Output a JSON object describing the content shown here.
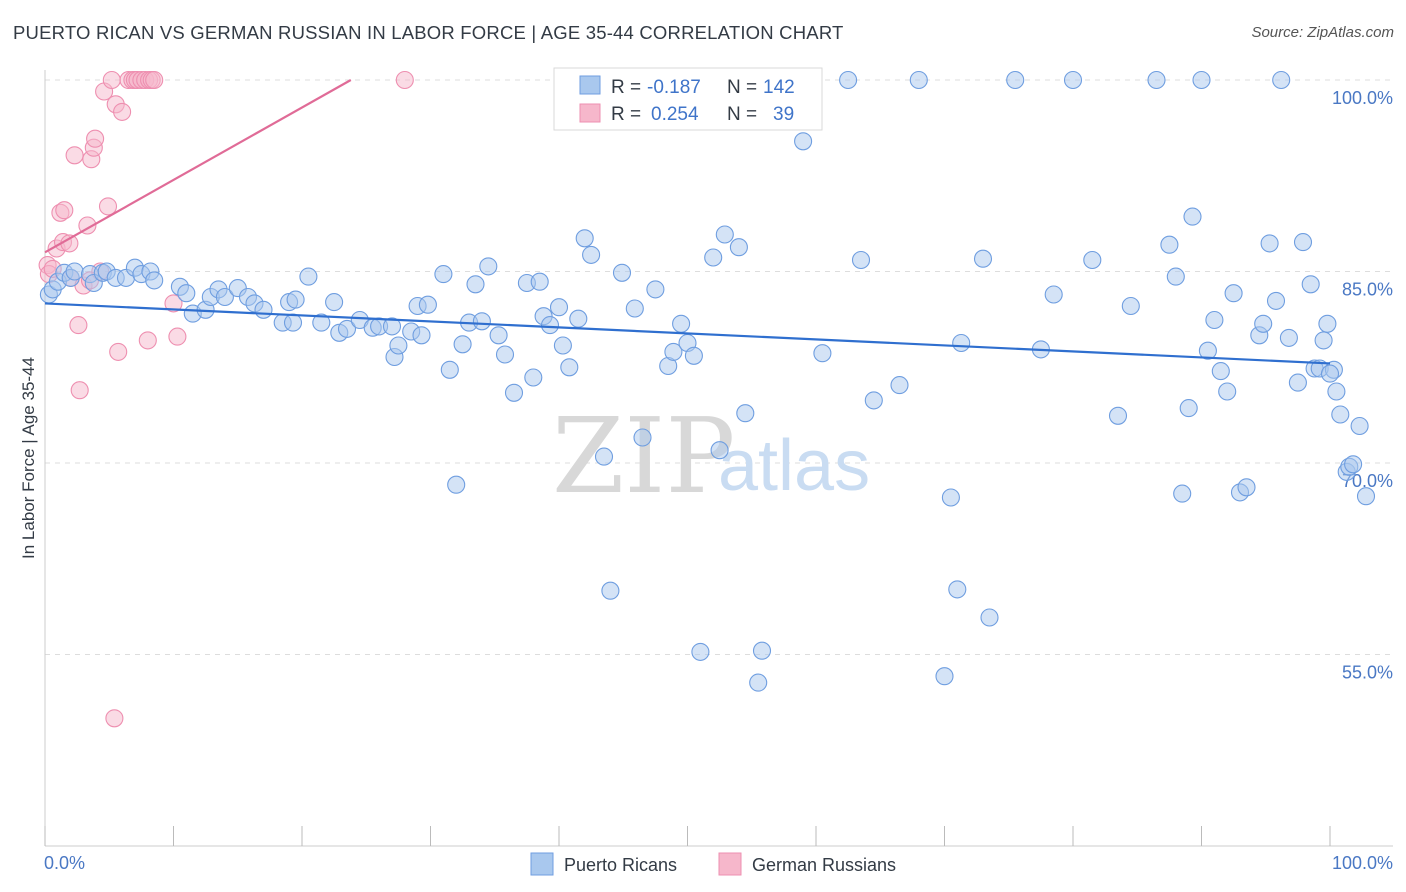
{
  "title": "PUERTO RICAN VS GERMAN RUSSIAN IN LABOR FORCE | AGE 35-44 CORRELATION CHART",
  "source": "Source: ZipAtlas.com",
  "watermark": {
    "zip": "ZIP",
    "atlas": "atlas"
  },
  "colors": {
    "blue_fill": "#a9c8ee",
    "blue_stroke": "#6f9ee0",
    "blue_line": "#2f6fcf",
    "pink_fill": "#f6b7cb",
    "pink_stroke": "#ee8fb0",
    "pink_line": "#e06b97",
    "grid": "#dddddd",
    "axis_text": "#4a78c4"
  },
  "stats": {
    "rows": [
      {
        "r_label": "R =",
        "r_value": "-0.187",
        "n_label": "N =",
        "n_value": "142"
      },
      {
        "r_label": "R =",
        "r_value": "0.254",
        "n_label": "N =",
        "n_value": "39"
      }
    ]
  },
  "legend": {
    "items": [
      "Puerto Ricans",
      "German Russians"
    ]
  },
  "chart_data": {
    "type": "scatter",
    "title": "PUERTO RICAN VS GERMAN RUSSIAN IN LABOR FORCE | AGE 35-44 CORRELATION CHART",
    "xlabel": "",
    "ylabel": "In Labor Force | Age 35-44",
    "xlim": [
      0,
      100
    ],
    "ylim": [
      40,
      101
    ],
    "y_ticks": [
      55,
      70,
      85,
      100
    ],
    "y_tick_labels": [
      "55.0%",
      "70.0%",
      "85.0%",
      "100.0%"
    ],
    "x_tick_labels": [
      "0.0%",
      "100.0%"
    ],
    "grid": "horizontal dashed",
    "legend_position": "bottom-center",
    "series": [
      {
        "name": "Puerto Ricans",
        "r": -0.187,
        "n": 142,
        "trend": [
          [
            0,
            82.5
          ],
          [
            100,
            77.8
          ]
        ],
        "points": [
          [
            0.3,
            83.2
          ],
          [
            0.6,
            83.6
          ],
          [
            1.0,
            84.2
          ],
          [
            1.5,
            84.9
          ],
          [
            2.0,
            84.5
          ],
          [
            2.3,
            85.0
          ],
          [
            3.5,
            84.8
          ],
          [
            3.8,
            84.1
          ],
          [
            4.5,
            84.9
          ],
          [
            4.8,
            85.0
          ],
          [
            5.5,
            84.5
          ],
          [
            6.3,
            84.5
          ],
          [
            7.0,
            85.3
          ],
          [
            7.5,
            84.8
          ],
          [
            8.2,
            85.0
          ],
          [
            8.5,
            84.3
          ],
          [
            10.5,
            83.8
          ],
          [
            11.0,
            83.3
          ],
          [
            11.5,
            81.7
          ],
          [
            12.5,
            82.0
          ],
          [
            12.9,
            83.0
          ],
          [
            13.5,
            83.6
          ],
          [
            14.0,
            83.0
          ],
          [
            15.0,
            83.7
          ],
          [
            15.8,
            83.0
          ],
          [
            16.3,
            82.5
          ],
          [
            17.0,
            82.0
          ],
          [
            18.5,
            81.0
          ],
          [
            19.0,
            82.6
          ],
          [
            19.5,
            82.8
          ],
          [
            19.3,
            81.0
          ],
          [
            20.5,
            84.6
          ],
          [
            21.5,
            81.0
          ],
          [
            22.5,
            82.6
          ],
          [
            22.9,
            80.2
          ],
          [
            23.5,
            80.5
          ],
          [
            24.5,
            81.2
          ],
          [
            25.5,
            80.6
          ],
          [
            26.0,
            80.7
          ],
          [
            27.0,
            80.7
          ],
          [
            27.2,
            78.3
          ],
          [
            27.5,
            79.2
          ],
          [
            28.5,
            80.3
          ],
          [
            29.0,
            82.3
          ],
          [
            29.3,
            80.0
          ],
          [
            29.8,
            82.4
          ],
          [
            31.0,
            84.8
          ],
          [
            31.5,
            77.3
          ],
          [
            32.0,
            68.3
          ],
          [
            32.5,
            79.3
          ],
          [
            33.0,
            81.0
          ],
          [
            33.5,
            84.0
          ],
          [
            34.0,
            81.1
          ],
          [
            34.5,
            85.4
          ],
          [
            35.3,
            80.0
          ],
          [
            35.8,
            78.5
          ],
          [
            36.5,
            75.5
          ],
          [
            37.5,
            84.1
          ],
          [
            38.0,
            76.7
          ],
          [
            38.5,
            84.2
          ],
          [
            38.8,
            81.5
          ],
          [
            39.3,
            80.8
          ],
          [
            40.0,
            82.2
          ],
          [
            40.3,
            79.2
          ],
          [
            40.8,
            77.5
          ],
          [
            41.5,
            81.3
          ],
          [
            42.0,
            87.6
          ],
          [
            42.5,
            86.3
          ],
          [
            43.5,
            70.5
          ],
          [
            44.0,
            60.0
          ],
          [
            44.9,
            84.9
          ],
          [
            45.9,
            82.1
          ],
          [
            46.5,
            72.0
          ],
          [
            47.5,
            83.6
          ],
          [
            48.5,
            77.6
          ],
          [
            48.9,
            78.7
          ],
          [
            49.5,
            80.9
          ],
          [
            50.0,
            79.4
          ],
          [
            50.5,
            78.4
          ],
          [
            51.0,
            55.2
          ],
          [
            52.0,
            86.1
          ],
          [
            52.5,
            71.0
          ],
          [
            52.9,
            87.9
          ],
          [
            54.0,
            86.9
          ],
          [
            54.5,
            73.9
          ],
          [
            55.5,
            52.8
          ],
          [
            55.8,
            55.3
          ],
          [
            57.5,
            98.2
          ],
          [
            59.0,
            95.2
          ],
          [
            60.5,
            78.6
          ],
          [
            62.5,
            100.0
          ],
          [
            64.5,
            74.9
          ],
          [
            66.5,
            76.1
          ],
          [
            68.0,
            100.0
          ],
          [
            70.0,
            53.3
          ],
          [
            70.5,
            67.3
          ],
          [
            71.0,
            60.1
          ],
          [
            71.3,
            79.4
          ],
          [
            73.0,
            86.0
          ],
          [
            73.5,
            57.9
          ],
          [
            75.5,
            100.0
          ],
          [
            77.5,
            78.9
          ],
          [
            78.5,
            83.2
          ],
          [
            80.0,
            100.0
          ],
          [
            81.5,
            85.9
          ],
          [
            83.5,
            73.7
          ],
          [
            84.5,
            82.3
          ],
          [
            86.5,
            100.0
          ],
          [
            87.5,
            87.1
          ],
          [
            88.5,
            67.6
          ],
          [
            89.0,
            74.3
          ],
          [
            89.3,
            89.3
          ],
          [
            90.0,
            100.0
          ],
          [
            90.5,
            78.8
          ],
          [
            91.0,
            81.2
          ],
          [
            91.5,
            77.2
          ],
          [
            92.0,
            75.6
          ],
          [
            92.5,
            83.3
          ],
          [
            93.0,
            67.7
          ],
          [
            93.5,
            68.1
          ],
          [
            94.5,
            80.0
          ],
          [
            94.8,
            80.9
          ],
          [
            95.3,
            87.2
          ],
          [
            95.8,
            82.7
          ],
          [
            96.2,
            100.0
          ],
          [
            96.8,
            79.8
          ],
          [
            97.5,
            76.3
          ],
          [
            97.9,
            87.3
          ],
          [
            98.5,
            84.0
          ],
          [
            98.8,
            77.4
          ],
          [
            99.2,
            77.4
          ],
          [
            99.5,
            79.6
          ],
          [
            99.8,
            80.9
          ],
          [
            100.3,
            77.3
          ],
          [
            100.5,
            75.6
          ],
          [
            100.8,
            73.8
          ],
          [
            101.3,
            69.3
          ],
          [
            101.5,
            69.7
          ],
          [
            101.8,
            69.9
          ],
          [
            102.3,
            72.9
          ],
          [
            102.8,
            67.4
          ],
          [
            100.0,
            77.0
          ],
          [
            88.0,
            84.6
          ],
          [
            63.5,
            85.9
          ]
        ]
      },
      {
        "name": "German Russians",
        "r": 0.254,
        "n": 39,
        "trend": [
          [
            0,
            86.5
          ],
          [
            23.8,
            100.0
          ]
        ],
        "points": [
          [
            0.2,
            85.5
          ],
          [
            0.3,
            84.8
          ],
          [
            0.6,
            85.2
          ],
          [
            0.9,
            86.8
          ],
          [
            1.2,
            89.6
          ],
          [
            1.4,
            87.3
          ],
          [
            1.5,
            89.8
          ],
          [
            1.9,
            87.2
          ],
          [
            2.0,
            84.5
          ],
          [
            2.3,
            94.1
          ],
          [
            2.6,
            80.8
          ],
          [
            2.7,
            75.7
          ],
          [
            3.0,
            83.9
          ],
          [
            3.3,
            88.6
          ],
          [
            3.5,
            84.3
          ],
          [
            3.6,
            93.8
          ],
          [
            3.8,
            94.7
          ],
          [
            3.9,
            95.4
          ],
          [
            4.3,
            85.0
          ],
          [
            4.6,
            99.1
          ],
          [
            4.9,
            90.1
          ],
          [
            5.2,
            100.0
          ],
          [
            5.4,
            50.0
          ],
          [
            5.5,
            98.1
          ],
          [
            5.7,
            78.7
          ],
          [
            6.0,
            97.5
          ],
          [
            6.5,
            100.0
          ],
          [
            6.8,
            100.0
          ],
          [
            7.0,
            100.0
          ],
          [
            7.2,
            100.0
          ],
          [
            7.5,
            100.0
          ],
          [
            7.8,
            100.0
          ],
          [
            8.1,
            100.0
          ],
          [
            8.3,
            100.0
          ],
          [
            8.5,
            100.0
          ],
          [
            8.0,
            79.6
          ],
          [
            10.0,
            82.5
          ],
          [
            10.3,
            79.9
          ],
          [
            28.0,
            100.0
          ]
        ]
      }
    ]
  }
}
